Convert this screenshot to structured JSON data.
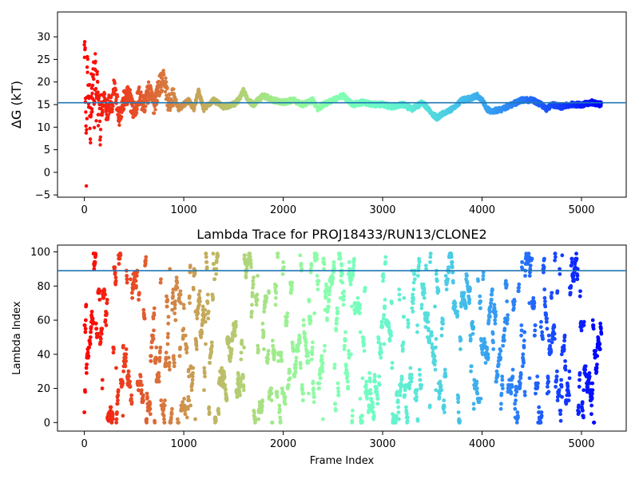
{
  "chart_data": [
    {
      "id": "delta-g",
      "type": "scatter",
      "title": "",
      "xlabel": "",
      "ylabel": "ΔG (kT)",
      "xlim": [
        -270,
        5450
      ],
      "ylim": [
        -5.5,
        35.5
      ],
      "x_ticks": [
        0,
        1000,
        2000,
        3000,
        4000,
        5000
      ],
      "x_tick_labels": [
        "0",
        "1000",
        "2000",
        "3000",
        "4000",
        "5000"
      ],
      "y_ticks": [
        -5,
        0,
        5,
        10,
        15,
        20,
        25,
        30
      ],
      "y_tick_labels": [
        "−5",
        "0",
        "5",
        "10",
        "15",
        "20",
        "25",
        "30"
      ],
      "grid": false,
      "colormap": "rainbow",
      "color_by": "frame index",
      "series": [
        {
          "trace_anchors": [
            [
              0,
              34
            ],
            [
              10,
              20
            ],
            [
              20,
              2
            ],
            [
              30,
              26
            ],
            [
              40,
              12
            ],
            [
              50,
              20
            ],
            [
              60,
              9
            ],
            [
              70,
              18
            ],
            [
              80,
              14
            ],
            [
              90,
              24
            ],
            [
              100,
              11
            ],
            [
              110,
              28
            ],
            [
              120,
              12
            ],
            [
              130,
              23
            ],
            [
              140,
              12
            ],
            [
              150,
              18
            ],
            [
              160,
              5
            ],
            [
              170,
              16
            ],
            [
              180,
              13
            ],
            [
              200,
              18
            ],
            [
              220,
              13
            ],
            [
              250,
              15
            ],
            [
              280,
              14
            ],
            [
              300,
              20
            ],
            [
              350,
              12.5
            ],
            [
              400,
              16
            ],
            [
              450,
              17
            ],
            [
              500,
              13
            ],
            [
              550,
              17
            ],
            [
              600,
              15
            ],
            [
              650,
              18
            ],
            [
              700,
              15
            ],
            [
              750,
              19
            ],
            [
              800,
              21
            ],
            [
              850,
              15
            ],
            [
              900,
              17
            ],
            [
              950,
              14
            ],
            [
              1000,
              15
            ],
            [
              1050,
              16
            ],
            [
              1100,
              14
            ],
            [
              1150,
              18
            ],
            [
              1200,
              14
            ],
            [
              1300,
              16
            ],
            [
              1400,
              14.5
            ],
            [
              1500,
              15
            ],
            [
              1550,
              16
            ],
            [
              1600,
              18
            ],
            [
              1650,
              16
            ],
            [
              1700,
              15
            ],
            [
              1800,
              17
            ],
            [
              1900,
              16
            ],
            [
              2000,
              15.5
            ],
            [
              2100,
              16
            ],
            [
              2200,
              15
            ],
            [
              2300,
              16
            ],
            [
              2350,
              14
            ],
            [
              2400,
              15
            ],
            [
              2500,
              16
            ],
            [
              2600,
              17
            ],
            [
              2700,
              15
            ],
            [
              2800,
              15.5
            ],
            [
              2900,
              15
            ],
            [
              3000,
              15
            ],
            [
              3100,
              14.5
            ],
            [
              3200,
              15
            ],
            [
              3300,
              14
            ],
            [
              3400,
              15.5
            ],
            [
              3500,
              13
            ],
            [
              3550,
              12
            ],
            [
              3600,
              13
            ],
            [
              3700,
              14
            ],
            [
              3800,
              16
            ],
            [
              3900,
              16.5
            ],
            [
              3950,
              17
            ],
            [
              4000,
              16
            ],
            [
              4050,
              14
            ],
            [
              4100,
              13.5
            ],
            [
              4200,
              14
            ],
            [
              4300,
              15
            ],
            [
              4400,
              16
            ],
            [
              4500,
              16
            ],
            [
              4600,
              15
            ],
            [
              4650,
              14
            ],
            [
              4700,
              15
            ],
            [
              4800,
              14.5
            ],
            [
              4900,
              15
            ],
            [
              5000,
              15
            ],
            [
              5100,
              15.5
            ],
            [
              5200,
              15
            ]
          ]
        }
      ],
      "hlines": [
        15.4
      ],
      "hline_color": "#1f77b4"
    },
    {
      "id": "lambda-trace",
      "type": "scatter",
      "title": "Lambda Trace for PROJ18433/RUN13/CLONE2",
      "xlabel": "Frame Index",
      "ylabel": "Lambda Index",
      "xlim": [
        -270,
        5450
      ],
      "ylim": [
        -5,
        104
      ],
      "x_ticks": [
        0,
        1000,
        2000,
        3000,
        4000,
        5000
      ],
      "x_tick_labels": [
        "0",
        "1000",
        "2000",
        "3000",
        "4000",
        "5000"
      ],
      "y_ticks": [
        0,
        20,
        40,
        60,
        80,
        100
      ],
      "y_tick_labels": [
        "0",
        "20",
        "40",
        "60",
        "80",
        "100"
      ],
      "grid": false,
      "colormap": "rainbow",
      "color_by": "frame index",
      "frame_range": [
        0,
        5200
      ],
      "lambda_range": [
        0,
        99
      ],
      "hlines": [
        89
      ],
      "hline_color": "#1f77b4"
    }
  ]
}
